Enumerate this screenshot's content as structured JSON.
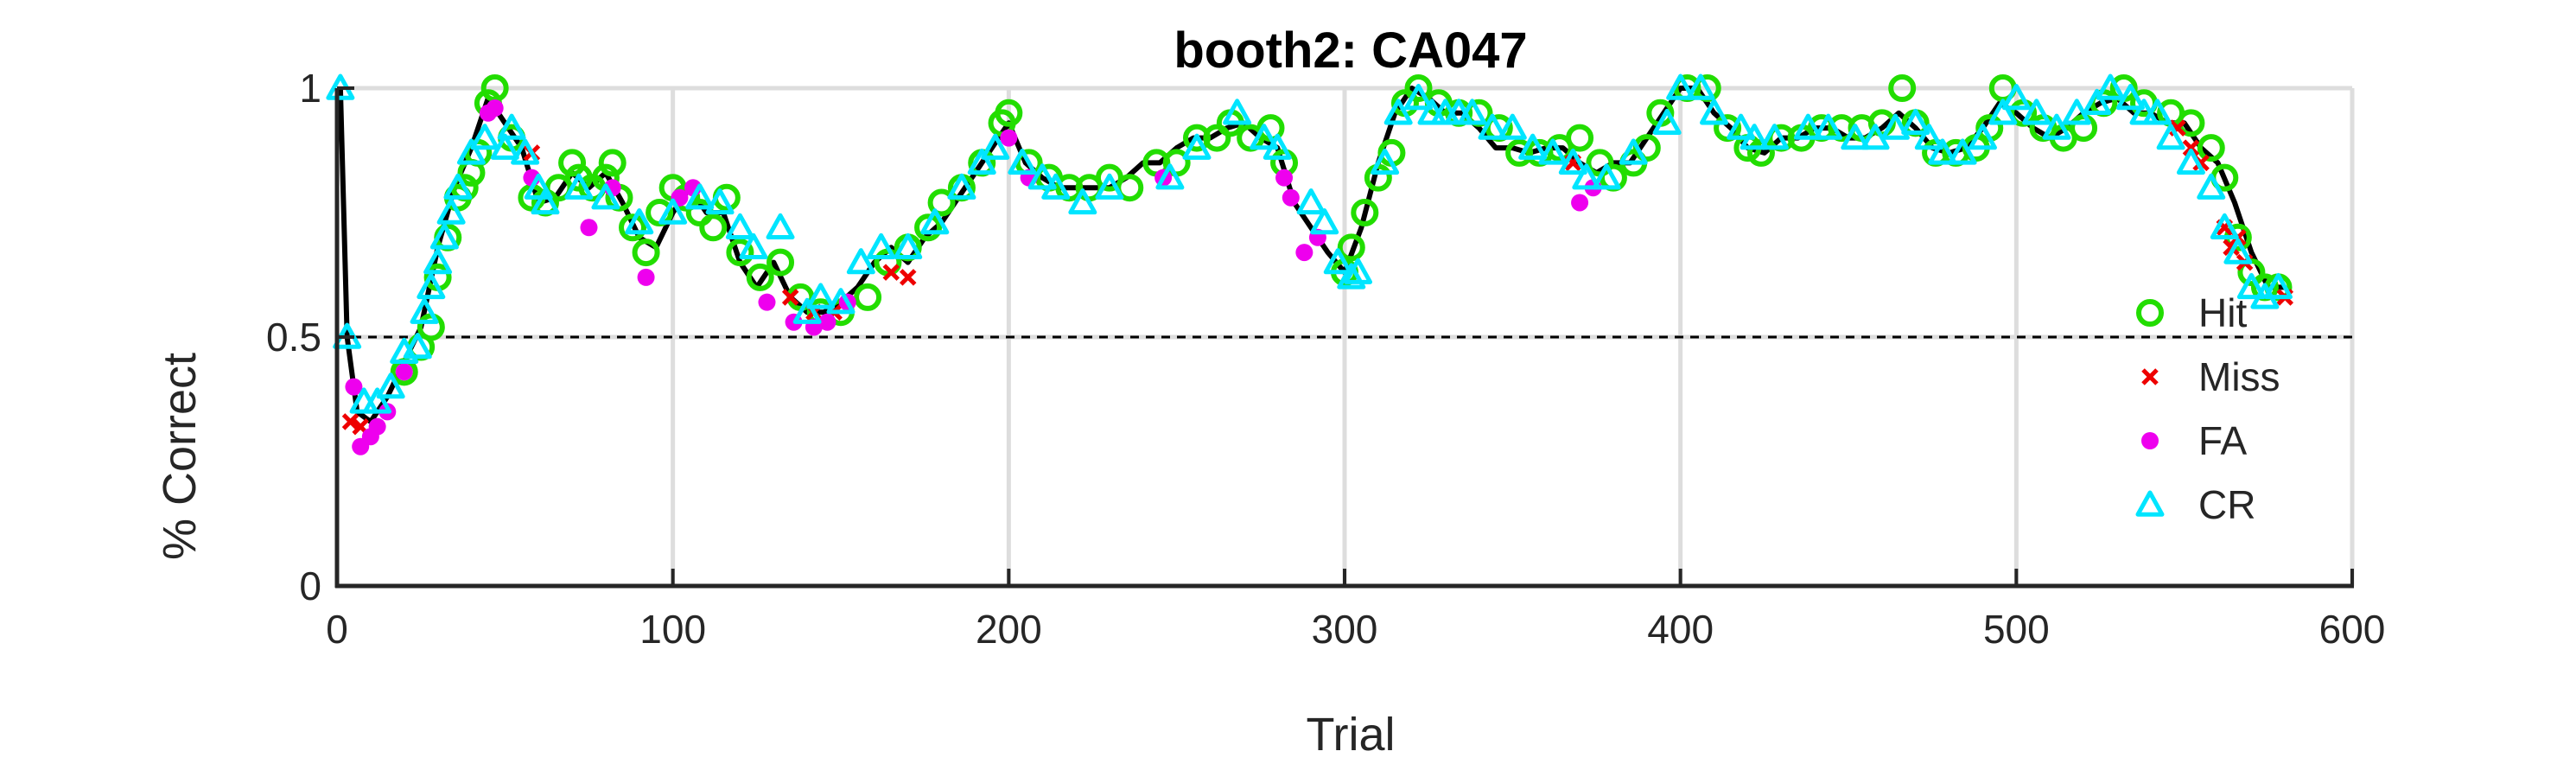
{
  "chart_data": {
    "type": "line",
    "title": "booth2: CA047",
    "xlabel": "Trial",
    "ylabel": "% Correct",
    "xlim": [
      0,
      600
    ],
    "ylim": [
      0,
      1
    ],
    "xticks": [
      "0",
      "100",
      "200",
      "300",
      "400",
      "500",
      "600"
    ],
    "yticks": [
      "0",
      "0.5",
      "1"
    ],
    "grid": true,
    "legend_position": "right",
    "reference_line": {
      "y": 0.5,
      "style": "dashed"
    },
    "colors": {
      "line": "#000000",
      "Hit": "#22dd00",
      "Miss": "#ee0000",
      "FA": "#ee00ee",
      "CR": "#00e5ff",
      "grid": "#dddddd"
    },
    "curve": {
      "x": [
        1,
        3,
        6,
        10,
        15,
        20,
        25,
        30,
        35,
        40,
        45,
        50,
        55,
        60,
        65,
        70,
        75,
        80,
        85,
        90,
        95,
        100,
        105,
        110,
        115,
        120,
        125,
        130,
        135,
        140,
        145,
        150,
        155,
        160,
        165,
        170,
        175,
        180,
        185,
        190,
        195,
        200,
        205,
        210,
        215,
        220,
        225,
        230,
        235,
        240,
        245,
        250,
        255,
        260,
        265,
        270,
        275,
        280,
        285,
        290,
        295,
        300,
        305,
        310,
        315,
        320,
        325,
        330,
        335,
        340,
        345,
        350,
        355,
        360,
        365,
        370,
        375,
        380,
        385,
        390,
        395,
        400,
        405,
        410,
        415,
        420,
        425,
        430,
        435,
        440,
        445,
        450,
        455,
        460,
        465,
        470,
        475,
        480,
        485,
        490,
        495,
        500,
        505,
        510,
        515,
        520,
        525,
        530,
        535,
        540,
        545,
        550,
        555,
        560,
        565,
        570,
        575,
        580
      ],
      "y": [
        1.0,
        0.5,
        0.35,
        0.33,
        0.38,
        0.45,
        0.52,
        0.68,
        0.8,
        0.88,
        0.98,
        0.93,
        0.88,
        0.77,
        0.78,
        0.83,
        0.8,
        0.83,
        0.77,
        0.7,
        0.68,
        0.75,
        0.8,
        0.75,
        0.75,
        0.65,
        0.6,
        0.65,
        0.58,
        0.55,
        0.55,
        0.57,
        0.6,
        0.65,
        0.68,
        0.65,
        0.7,
        0.73,
        0.78,
        0.83,
        0.88,
        0.93,
        0.85,
        0.82,
        0.8,
        0.8,
        0.8,
        0.8,
        0.82,
        0.85,
        0.85,
        0.88,
        0.9,
        0.9,
        0.92,
        0.93,
        0.9,
        0.88,
        0.77,
        0.72,
        0.67,
        0.63,
        0.72,
        0.85,
        0.95,
        1.0,
        0.98,
        0.95,
        0.95,
        0.92,
        0.88,
        0.88,
        0.87,
        0.88,
        0.88,
        0.85,
        0.83,
        0.85,
        0.85,
        0.9,
        0.95,
        1.0,
        1.0,
        0.95,
        0.92,
        0.88,
        0.87,
        0.9,
        0.9,
        0.92,
        0.92,
        0.9,
        0.9,
        0.92,
        0.95,
        0.92,
        0.88,
        0.87,
        0.88,
        0.92,
        0.97,
        0.95,
        0.92,
        0.9,
        0.92,
        0.95,
        0.97,
        0.98,
        0.95,
        0.95,
        0.93,
        0.93,
        0.88,
        0.85,
        0.77,
        0.67,
        0.6,
        0.6
      ]
    },
    "series": [
      {
        "name": "Hit",
        "marker": "circle",
        "x": [
          20,
          25,
          28,
          30,
          33,
          36,
          38,
          40,
          42,
          45,
          47,
          52,
          58,
          62,
          66,
          70,
          72,
          76,
          80,
          82,
          84,
          88,
          92,
          96,
          100,
          104,
          108,
          112,
          116,
          120,
          126,
          132,
          138,
          144,
          150,
          158,
          164,
          170,
          176,
          180,
          186,
          192,
          198,
          200,
          206,
          212,
          218,
          224,
          230,
          236,
          244,
          250,
          256,
          262,
          266,
          272,
          278,
          282,
          300,
          302,
          306,
          310,
          314,
          318,
          322,
          328,
          334,
          340,
          346,
          352,
          358,
          364,
          370,
          376,
          380,
          386,
          390,
          394,
          402,
          408,
          414,
          420,
          424,
          430,
          436,
          442,
          448,
          454,
          460,
          466,
          470,
          476,
          482,
          488,
          492,
          496,
          502,
          508,
          514,
          520,
          526,
          532,
          538,
          546,
          552,
          558,
          562,
          566,
          570,
          574,
          578
        ],
        "y": [
          0.43,
          0.48,
          0.52,
          0.62,
          0.7,
          0.78,
          0.8,
          0.83,
          0.87,
          0.97,
          1.0,
          0.9,
          0.78,
          0.77,
          0.8,
          0.85,
          0.82,
          0.8,
          0.82,
          0.85,
          0.78,
          0.72,
          0.67,
          0.75,
          0.8,
          0.78,
          0.75,
          0.72,
          0.78,
          0.67,
          0.62,
          0.65,
          0.58,
          0.55,
          0.55,
          0.58,
          0.65,
          0.68,
          0.72,
          0.77,
          0.8,
          0.85,
          0.93,
          0.95,
          0.85,
          0.82,
          0.8,
          0.8,
          0.82,
          0.8,
          0.85,
          0.85,
          0.9,
          0.9,
          0.93,
          0.9,
          0.92,
          0.85,
          0.63,
          0.68,
          0.75,
          0.82,
          0.87,
          0.97,
          1.0,
          0.97,
          0.95,
          0.95,
          0.92,
          0.87,
          0.87,
          0.88,
          0.9,
          0.85,
          0.82,
          0.85,
          0.88,
          0.95,
          1.0,
          1.0,
          0.92,
          0.88,
          0.87,
          0.9,
          0.9,
          0.92,
          0.92,
          0.92,
          0.93,
          1.0,
          0.93,
          0.87,
          0.87,
          0.88,
          0.92,
          1.0,
          0.95,
          0.92,
          0.9,
          0.92,
          0.97,
          1.0,
          0.97,
          0.95,
          0.93,
          0.88,
          0.82,
          0.7,
          0.63,
          0.6,
          0.6
        ]
      },
      {
        "name": "Miss",
        "marker": "x",
        "x": [
          4,
          7,
          58,
          135,
          142,
          148,
          165,
          170,
          368,
          548,
          552,
          555,
          562,
          564,
          566,
          568,
          580
        ],
        "y": [
          0.33,
          0.32,
          0.87,
          0.58,
          0.55,
          0.55,
          0.63,
          0.62,
          0.85,
          0.92,
          0.88,
          0.85,
          0.72,
          0.68,
          0.7,
          0.65,
          0.58
        ]
      },
      {
        "name": "FA",
        "marker": "dot",
        "x": [
          5,
          7,
          10,
          12,
          15,
          20,
          45,
          47,
          58,
          75,
          82,
          92,
          102,
          106,
          128,
          136,
          142,
          146,
          152,
          200,
          206,
          246,
          282,
          284,
          288,
          292,
          370,
          374
        ],
        "y": [
          0.4,
          0.28,
          0.3,
          0.32,
          0.35,
          0.43,
          0.95,
          0.96,
          0.82,
          0.72,
          0.8,
          0.62,
          0.78,
          0.8,
          0.57,
          0.53,
          0.52,
          0.53,
          0.57,
          0.9,
          0.82,
          0.82,
          0.82,
          0.78,
          0.67,
          0.7,
          0.77,
          0.8
        ]
      },
      {
        "name": "CR",
        "marker": "triangle",
        "x": [
          1,
          3,
          8,
          12,
          16,
          20,
          24,
          26,
          28,
          30,
          32,
          34,
          36,
          40,
          44,
          50,
          52,
          56,
          60,
          62,
          72,
          80,
          90,
          100,
          108,
          114,
          120,
          124,
          132,
          140,
          144,
          150,
          156,
          162,
          170,
          178,
          186,
          192,
          196,
          204,
          210,
          214,
          222,
          230,
          248,
          256,
          268,
          276,
          280,
          290,
          294,
          298,
          302,
          304,
          312,
          316,
          322,
          326,
          330,
          334,
          338,
          344,
          350,
          356,
          362,
          368,
          372,
          378,
          386,
          396,
          400,
          406,
          410,
          418,
          422,
          428,
          438,
          444,
          452,
          458,
          464,
          470,
          474,
          478,
          484,
          490,
          496,
          500,
          506,
          512,
          518,
          524,
          528,
          534,
          538,
          542,
          546,
          552,
          558,
          562,
          566,
          570,
          574,
          578
        ],
        "y": [
          1.0,
          0.5,
          0.37,
          0.37,
          0.4,
          0.47,
          0.48,
          0.55,
          0.6,
          0.65,
          0.7,
          0.75,
          0.8,
          0.87,
          0.9,
          0.88,
          0.92,
          0.87,
          0.8,
          0.77,
          0.8,
          0.78,
          0.73,
          0.75,
          0.78,
          0.77,
          0.72,
          0.68,
          0.72,
          0.55,
          0.58,
          0.57,
          0.65,
          0.68,
          0.68,
          0.73,
          0.8,
          0.85,
          0.88,
          0.85,
          0.82,
          0.8,
          0.77,
          0.8,
          0.82,
          0.88,
          0.95,
          0.9,
          0.88,
          0.77,
          0.73,
          0.65,
          0.62,
          0.63,
          0.85,
          0.95,
          0.98,
          0.95,
          0.95,
          0.95,
          0.95,
          0.92,
          0.92,
          0.88,
          0.87,
          0.85,
          0.82,
          0.82,
          0.87,
          0.93,
          1.0,
          1.0,
          0.95,
          0.92,
          0.9,
          0.9,
          0.92,
          0.92,
          0.9,
          0.9,
          0.92,
          0.93,
          0.9,
          0.87,
          0.87,
          0.9,
          0.95,
          0.98,
          0.95,
          0.92,
          0.95,
          0.97,
          1.0,
          0.98,
          0.95,
          0.95,
          0.9,
          0.85,
          0.8,
          0.72,
          0.67,
          0.6,
          0.58,
          0.6
        ]
      }
    ]
  }
}
